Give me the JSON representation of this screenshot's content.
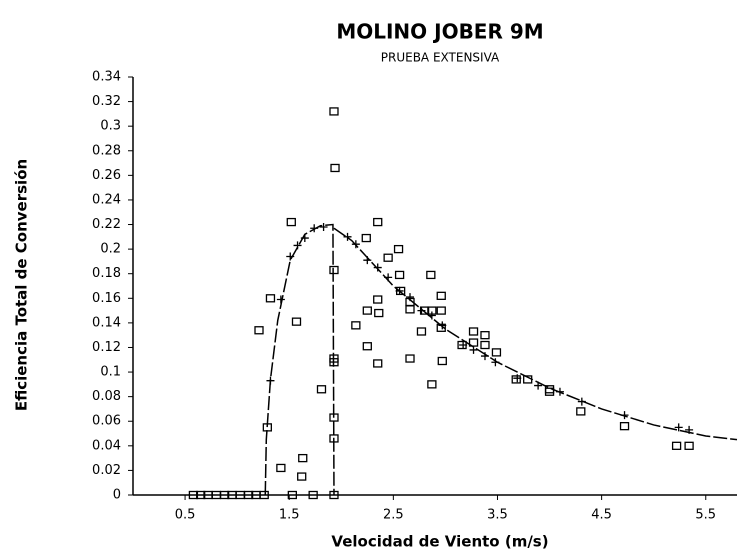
{
  "chart_data": {
    "type": "scatter",
    "title": "MOLINO JOBER 9M",
    "subtitle": "PRUEBA EXTENSIVA",
    "x_label": "Velocidad de Viento (m/s)",
    "y_label": "Eficiencia Total de Conversión",
    "xlim": [
      0,
      5.8
    ],
    "ylim": [
      0,
      0.34
    ],
    "xticks": [
      0.5,
      1.5,
      2.5,
      3.5,
      4.5,
      5.5
    ],
    "yticks": [
      0,
      0.02,
      0.04,
      0.06,
      0.08,
      0.1,
      0.12,
      0.14,
      0.16,
      0.18,
      0.2,
      0.22,
      0.24,
      0.26,
      0.28,
      0.3,
      0.32,
      0.34
    ],
    "grid": false,
    "series": [
      {
        "marker": "square",
        "color": "#000000",
        "x": [
          0.58,
          0.65,
          0.72,
          0.8,
          0.88,
          0.95,
          1.03,
          1.11,
          1.18,
          1.26,
          1.53,
          1.73,
          1.93,
          1.21,
          1.29,
          1.32,
          1.42,
          1.52,
          1.57,
          1.63,
          1.62,
          1.81,
          1.93,
          1.94,
          1.93,
          1.93,
          1.93,
          1.93,
          1.93,
          2.14,
          2.24,
          2.25,
          2.25,
          2.35,
          2.35,
          2.36,
          2.35,
          2.45,
          2.55,
          2.56,
          2.57,
          2.66,
          2.66,
          2.66,
          2.77,
          2.8,
          2.86,
          2.87,
          2.87,
          2.96,
          2.96,
          2.96,
          2.97,
          3.16,
          3.27,
          3.27,
          3.38,
          3.38,
          3.49,
          3.68,
          3.79,
          4.0,
          4.0,
          4.3,
          4.72,
          5.22,
          5.34
        ],
        "values": [
          0,
          0,
          0,
          0,
          0,
          0,
          0,
          0,
          0,
          0,
          0,
          0,
          0,
          0.134,
          0.055,
          0.16,
          0.022,
          0.222,
          0.141,
          0.03,
          0.015,
          0.086,
          0.312,
          0.266,
          0.183,
          0.111,
          0.108,
          0.063,
          0.046,
          0.138,
          0.209,
          0.15,
          0.121,
          0.222,
          0.159,
          0.148,
          0.107,
          0.193,
          0.2,
          0.179,
          0.166,
          0.157,
          0.151,
          0.111,
          0.133,
          0.15,
          0.179,
          0.15,
          0.09,
          0.162,
          0.15,
          0.136,
          0.109,
          0.122,
          0.133,
          0.124,
          0.13,
          0.122,
          0.116,
          0.094,
          0.094,
          0.086,
          0.084,
          0.068,
          0.056,
          0.04,
          0.04
        ]
      },
      {
        "marker": "plus",
        "color": "#000000",
        "x": [
          1.32,
          1.42,
          1.51,
          1.58,
          1.65,
          1.74,
          1.83,
          2.06,
          2.14,
          2.25,
          2.35,
          2.45,
          2.56,
          2.66,
          2.77,
          2.87,
          2.97,
          3.17,
          3.27,
          3.38,
          3.48,
          3.69,
          3.89,
          4.1,
          4.31,
          4.72,
          5.24,
          5.34
        ],
        "values": [
          0.093,
          0.159,
          0.194,
          0.203,
          0.209,
          0.217,
          0.218,
          0.21,
          0.204,
          0.191,
          0.185,
          0.177,
          0.166,
          0.161,
          0.15,
          0.146,
          0.138,
          0.122,
          0.118,
          0.113,
          0.108,
          0.095,
          0.089,
          0.084,
          0.076,
          0.065,
          0.055,
          0.053
        ]
      },
      {
        "marker": "line",
        "style": "dashed",
        "color": "#000000",
        "x": [
          1.27,
          1.28,
          1.32,
          1.39,
          1.51,
          1.65,
          1.8,
          1.92,
          1.93,
          null,
          1.93,
          2.1,
          2.5,
          3.0,
          3.5,
          4.0,
          4.5,
          5.0,
          5.5,
          5.8
        ],
        "values": [
          0,
          0.045,
          0.094,
          0.142,
          0.191,
          0.212,
          0.219,
          0.22,
          0,
          null,
          0.217,
          0.207,
          0.17,
          0.135,
          0.108,
          0.087,
          0.07,
          0.057,
          0.048,
          0.045
        ]
      }
    ]
  }
}
